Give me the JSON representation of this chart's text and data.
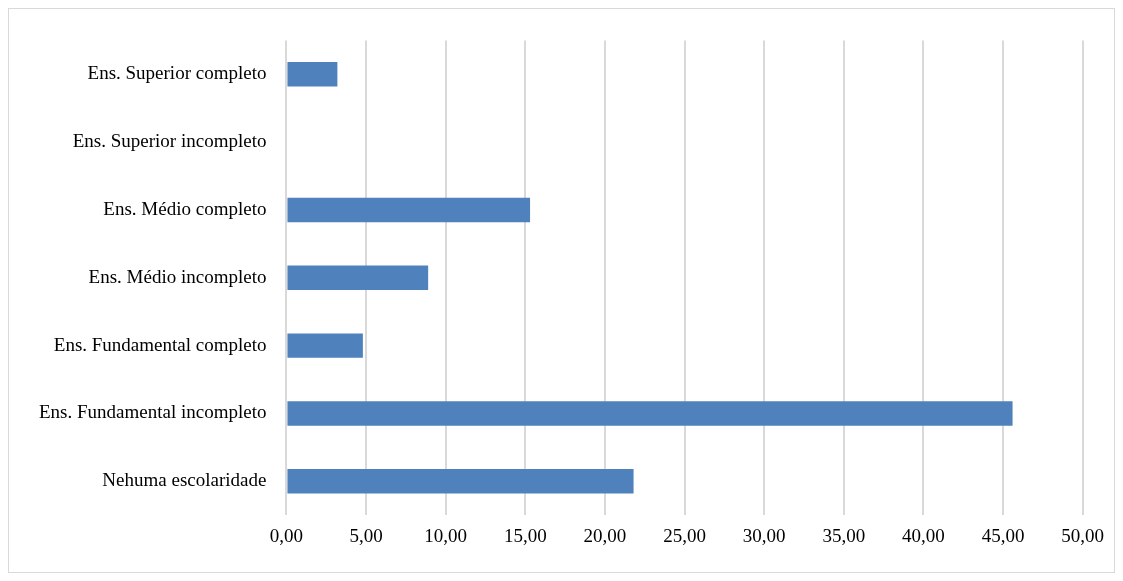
{
  "chart_data": {
    "type": "bar",
    "orientation": "horizontal",
    "categories": [
      "Ens. Superior completo",
      "Ens. Superior incompleto",
      "Ens. Médio completo",
      "Ens. Médio incompleto",
      "Ens. Fundamental completo",
      "Ens. Fundamental incompleto",
      "Nehuma escolaridade"
    ],
    "values": [
      3.2,
      0,
      15.3,
      8.9,
      4.8,
      45.6,
      21.8
    ],
    "color": "#4f81bd",
    "xlim": [
      0,
      50
    ],
    "xticks": [
      {
        "value": 0,
        "label": "0,00"
      },
      {
        "value": 5,
        "label": "5,00"
      },
      {
        "value": 10,
        "label": "10,00"
      },
      {
        "value": 15,
        "label": "15,00"
      },
      {
        "value": 20,
        "label": "20,00"
      },
      {
        "value": 25,
        "label": "25,00"
      },
      {
        "value": 30,
        "label": "30,00"
      },
      {
        "value": 35,
        "label": "35,00"
      },
      {
        "value": 40,
        "label": "40,00"
      },
      {
        "value": 45,
        "label": "45,00"
      },
      {
        "value": 50,
        "label": "50,00"
      }
    ],
    "grid": "x"
  }
}
